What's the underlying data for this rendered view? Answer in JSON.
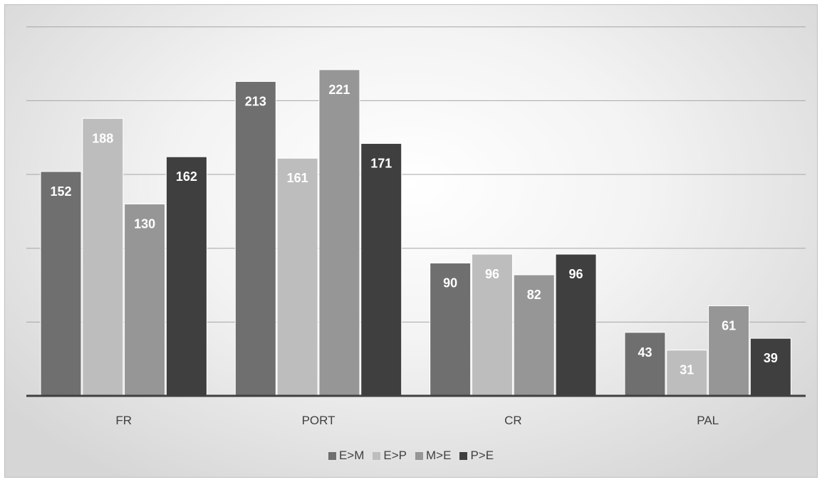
{
  "chart_data": {
    "type": "bar",
    "categories": [
      "FR",
      "PORT",
      "CR",
      "PAL"
    ],
    "series": [
      {
        "name": "E>M",
        "values": [
          152,
          213,
          90,
          43
        ],
        "color": "#6f6f6f"
      },
      {
        "name": "E>P",
        "values": [
          188,
          161,
          96,
          31
        ],
        "color": "#bdbdbd"
      },
      {
        "name": "M>E",
        "values": [
          130,
          221,
          82,
          61
        ],
        "color": "#969696"
      },
      {
        "name": "P>E",
        "values": [
          162,
          171,
          96,
          39
        ],
        "color": "#3f3f3f"
      }
    ],
    "title": "",
    "xlabel": "",
    "ylabel": "",
    "ylim": [
      0,
      250
    ],
    "grid": true,
    "legend": "bottom",
    "data_labels": true
  }
}
